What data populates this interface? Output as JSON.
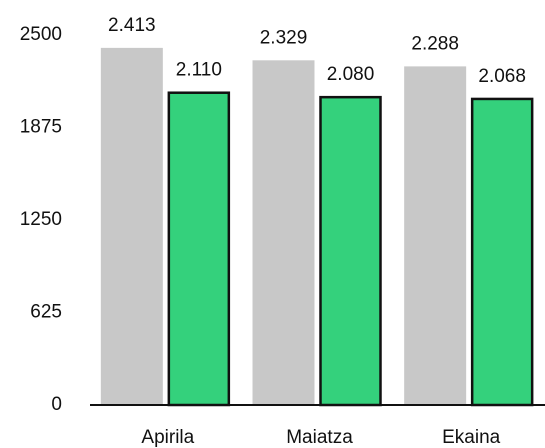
{
  "chart_data": {
    "type": "bar",
    "categories": [
      "Apirila",
      "Maiatza",
      "Ekaina"
    ],
    "series": [
      {
        "color": "#c8c8c8",
        "values": [
          2413,
          2329,
          2288
        ],
        "value_labels": [
          "2.413",
          "2.329",
          "2.288"
        ]
      },
      {
        "color": "#34d17c",
        "values": [
          2110,
          2080,
          2068
        ],
        "value_labels": [
          "2.110",
          "2.080",
          "2.068"
        ]
      }
    ],
    "ylim": [
      0,
      2500
    ],
    "yticks": [
      0,
      625,
      1250,
      1875,
      2500
    ],
    "grid": false
  }
}
